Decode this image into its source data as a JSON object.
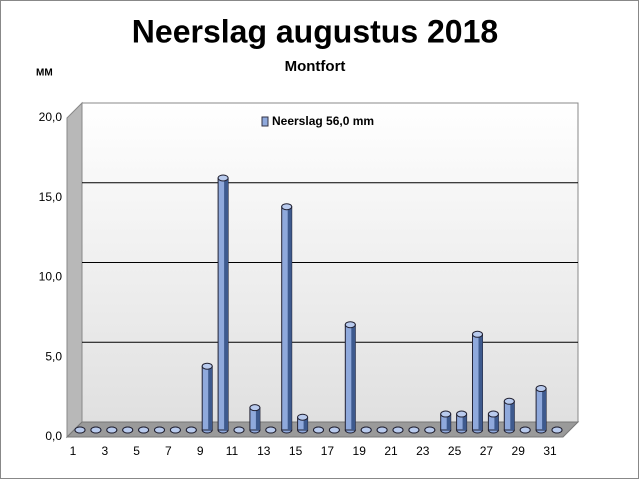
{
  "chart_data": {
    "type": "bar3d",
    "title": "Neerslag augustus 2018",
    "subtitle": "Montfort",
    "y_label": "MM",
    "categories": [
      1,
      null,
      3,
      null,
      5,
      null,
      7,
      null,
      9,
      null,
      11,
      null,
      13,
      null,
      15,
      null,
      17,
      null,
      19,
      null,
      21,
      null,
      23,
      null,
      25,
      null,
      27,
      null,
      29,
      null,
      31
    ],
    "series": [
      {
        "name": "Neerslag 56,0 mm",
        "color": "#8fa9dc",
        "values": [
          0,
          0,
          0,
          0,
          0,
          0,
          0,
          0,
          4.0,
          15.8,
          0,
          1.4,
          0,
          14.0,
          0.8,
          0,
          0,
          6.6,
          0,
          0,
          0,
          0,
          0,
          1.0,
          1.0,
          6.0,
          1.0,
          1.8,
          0,
          2.6,
          0
        ]
      }
    ],
    "ylim": [
      0,
      20
    ],
    "yticks": [
      {
        "value": 0,
        "label": "0,0"
      },
      {
        "value": 5,
        "label": "5,0"
      },
      {
        "value": 10,
        "label": "10,0"
      },
      {
        "value": 15,
        "label": "15,0"
      },
      {
        "value": 20,
        "label": "20,0"
      }
    ],
    "grid": true
  }
}
